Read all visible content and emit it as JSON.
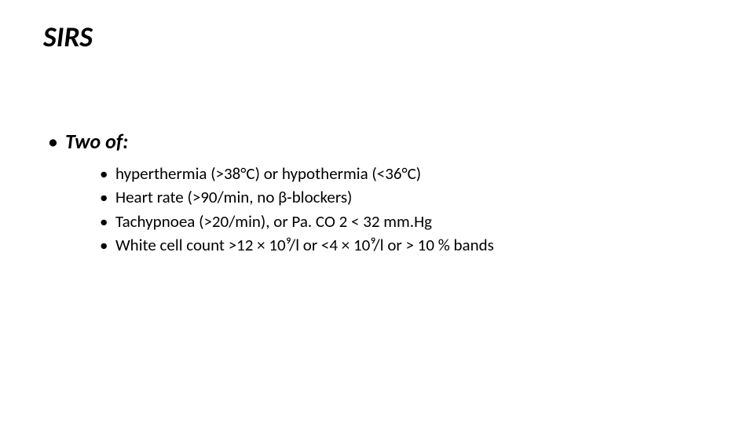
{
  "slide": {
    "title": "SIRS",
    "heading": "Two of:",
    "criteria": [
      "hyperthermia (>38°C) or hypothermia (<36°C)",
      "Heart rate (>90/min, no β-blockers)",
      "Tachypnoea (>20/min), or Pa. CO 2 < 32 mm.Hg",
      "White cell count >12 × 10⁹/l  or  <4 × 10⁹/l or > 10 % bands"
    ]
  },
  "style": {
    "background_color": "#ffffff",
    "text_color": "#000000",
    "title_fontsize": 36,
    "heading_fontsize": 26,
    "body_fontsize": 21,
    "font_family": "Calibri"
  }
}
